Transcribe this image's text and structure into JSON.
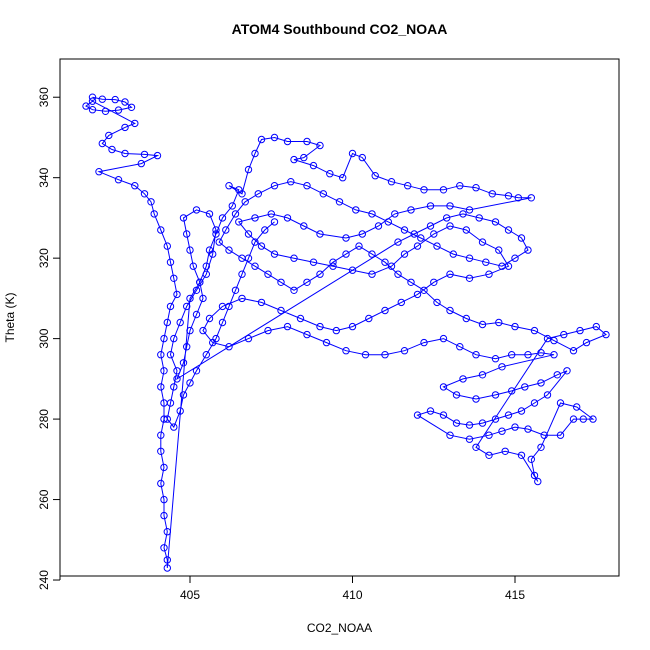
{
  "chart_data": {
    "type": "scatter",
    "title": "ATOM4 Southbound CO2_NOAA",
    "xlabel": "CO2_NOAA",
    "ylabel": "Theta (K)",
    "xlim": [
      401.0,
      418.2
    ],
    "ylim": [
      241.0,
      369.5
    ],
    "x_ticks": [
      405,
      410,
      415
    ],
    "y_ticks": [
      240,
      260,
      280,
      300,
      320,
      340,
      360
    ],
    "marker": "open-circle",
    "color": "#0000ff",
    "connected": true,
    "series": [
      {
        "values": [
          [
            402.0,
            360.0
          ],
          [
            402.3,
            359.5
          ],
          [
            402.7,
            359.4
          ],
          [
            403.0,
            358.8
          ],
          [
            403.2,
            357.5
          ],
          [
            402.8,
            356.8
          ],
          [
            402.4,
            356.5
          ],
          [
            402.0,
            356.9
          ],
          [
            401.8,
            357.8
          ],
          [
            402.0,
            359.0
          ],
          [
            403.3,
            353.5
          ],
          [
            403.0,
            352.5
          ],
          [
            402.5,
            350.5
          ],
          [
            402.3,
            348.5
          ],
          [
            402.6,
            347.0
          ],
          [
            403.0,
            346.0
          ],
          [
            403.6,
            345.8
          ],
          [
            404.0,
            345.5
          ],
          [
            403.5,
            343.5
          ],
          [
            402.2,
            341.5
          ],
          [
            402.8,
            339.5
          ],
          [
            403.3,
            338.0
          ],
          [
            403.6,
            336.0
          ],
          [
            403.8,
            334.0
          ],
          [
            403.9,
            331.0
          ],
          [
            404.1,
            327.0
          ],
          [
            404.3,
            323.0
          ],
          [
            404.4,
            319.0
          ],
          [
            404.5,
            315.0
          ],
          [
            404.6,
            311.0
          ],
          [
            404.4,
            308.0
          ],
          [
            404.3,
            304.0
          ],
          [
            404.2,
            300.0
          ],
          [
            404.1,
            296.0
          ],
          [
            404.2,
            292.0
          ],
          [
            404.1,
            288.0
          ],
          [
            404.2,
            284.0
          ],
          [
            404.2,
            280.0
          ],
          [
            404.1,
            276.0
          ],
          [
            404.1,
            272.0
          ],
          [
            404.2,
            268.0
          ],
          [
            404.1,
            264.0
          ],
          [
            404.2,
            260.0
          ],
          [
            404.2,
            256.0
          ],
          [
            404.3,
            252.0
          ],
          [
            404.2,
            248.0
          ],
          [
            404.3,
            245.0
          ],
          [
            404.3,
            243.0
          ],
          [
            405.0,
            310.0
          ],
          [
            405.3,
            314.0
          ],
          [
            405.5,
            318.0
          ],
          [
            405.6,
            322.0
          ],
          [
            405.8,
            326.0
          ],
          [
            406.0,
            330.0
          ],
          [
            406.3,
            333.0
          ],
          [
            406.5,
            337.0
          ],
          [
            406.2,
            338.0
          ],
          [
            406.6,
            336.0
          ],
          [
            406.8,
            342.0
          ],
          [
            407.0,
            346.0
          ],
          [
            407.2,
            349.5
          ],
          [
            407.6,
            350.0
          ],
          [
            408.0,
            349.0
          ],
          [
            408.6,
            349.0
          ],
          [
            409.0,
            348.0
          ],
          [
            408.5,
            345.0
          ],
          [
            408.2,
            344.5
          ],
          [
            408.8,
            343.0
          ],
          [
            409.3,
            341.0
          ],
          [
            409.7,
            340.0
          ],
          [
            410.0,
            346.0
          ],
          [
            410.3,
            345.0
          ],
          [
            410.7,
            340.5
          ],
          [
            411.2,
            339.0
          ],
          [
            411.7,
            338.0
          ],
          [
            412.2,
            337.0
          ],
          [
            412.8,
            337.0
          ],
          [
            413.3,
            338.0
          ],
          [
            413.8,
            337.5
          ],
          [
            414.3,
            336.0
          ],
          [
            414.8,
            335.5
          ],
          [
            415.1,
            335.0
          ],
          [
            415.5,
            335.0
          ],
          [
            413.6,
            332.0
          ],
          [
            413.0,
            333.0
          ],
          [
            412.4,
            333.0
          ],
          [
            411.8,
            332.0
          ],
          [
            411.3,
            331.0
          ],
          [
            410.8,
            328.0
          ],
          [
            410.3,
            326.0
          ],
          [
            409.8,
            325.0
          ],
          [
            409.0,
            326.0
          ],
          [
            408.5,
            328.0
          ],
          [
            408.0,
            330.0
          ],
          [
            407.5,
            331.0
          ],
          [
            407.0,
            330.0
          ],
          [
            406.5,
            329.0
          ],
          [
            406.8,
            326.0
          ],
          [
            407.2,
            323.0
          ],
          [
            407.6,
            321.0
          ],
          [
            408.2,
            320.0
          ],
          [
            408.8,
            319.0
          ],
          [
            409.4,
            318.0
          ],
          [
            410.0,
            317.0
          ],
          [
            410.6,
            316.0
          ],
          [
            411.2,
            318.0
          ],
          [
            411.6,
            321.0
          ],
          [
            412.0,
            323.0
          ],
          [
            412.5,
            326.0
          ],
          [
            413.0,
            328.0
          ],
          [
            413.5,
            327.0
          ],
          [
            414.0,
            324.0
          ],
          [
            414.5,
            322.0
          ],
          [
            414.8,
            318.0
          ],
          [
            414.2,
            316.0
          ],
          [
            413.6,
            315.0
          ],
          [
            413.0,
            316.0
          ],
          [
            412.5,
            314.0
          ],
          [
            412.0,
            311.0
          ],
          [
            411.5,
            309.0
          ],
          [
            411.0,
            307.0
          ],
          [
            410.5,
            305.0
          ],
          [
            410.0,
            303.0
          ],
          [
            409.5,
            302.0
          ],
          [
            409.0,
            303.0
          ],
          [
            408.4,
            305.0
          ],
          [
            407.8,
            307.0
          ],
          [
            407.2,
            309.0
          ],
          [
            406.6,
            310.0
          ],
          [
            406.0,
            308.0
          ],
          [
            405.6,
            305.0
          ],
          [
            405.4,
            302.0
          ],
          [
            405.7,
            299.0
          ],
          [
            406.2,
            298.0
          ],
          [
            406.8,
            300.0
          ],
          [
            407.4,
            302.0
          ],
          [
            408.0,
            303.0
          ],
          [
            408.6,
            301.0
          ],
          [
            409.2,
            299.0
          ],
          [
            409.8,
            297.0
          ],
          [
            410.4,
            296.0
          ],
          [
            411.0,
            296.0
          ],
          [
            411.6,
            297.0
          ],
          [
            412.2,
            299.0
          ],
          [
            412.8,
            300.0
          ],
          [
            413.3,
            298.0
          ],
          [
            413.8,
            296.0
          ],
          [
            414.4,
            295.0
          ],
          [
            414.9,
            296.0
          ],
          [
            415.4,
            296.0
          ],
          [
            415.8,
            296.5
          ],
          [
            416.2,
            296.0
          ],
          [
            414.6,
            293.0
          ],
          [
            414.0,
            291.0
          ],
          [
            413.4,
            290.0
          ],
          [
            412.8,
            288.0
          ],
          [
            413.2,
            286.0
          ],
          [
            413.8,
            285.0
          ],
          [
            414.4,
            286.0
          ],
          [
            414.9,
            287.0
          ],
          [
            415.3,
            288.0
          ],
          [
            415.8,
            289.0
          ],
          [
            416.3,
            291.0
          ],
          [
            416.6,
            292.0
          ],
          [
            416.0,
            286.0
          ],
          [
            415.6,
            284.0
          ],
          [
            415.2,
            282.0
          ],
          [
            414.8,
            281.0
          ],
          [
            414.4,
            280.0
          ],
          [
            414.0,
            279.0
          ],
          [
            413.6,
            278.5
          ],
          [
            413.2,
            279.0
          ],
          [
            412.8,
            281.0
          ],
          [
            412.4,
            282.0
          ],
          [
            412.0,
            281.0
          ],
          [
            413.0,
            276.0
          ],
          [
            413.6,
            275.0
          ],
          [
            414.2,
            276.0
          ],
          [
            414.6,
            277.0
          ],
          [
            415.0,
            278.0
          ],
          [
            415.4,
            277.5
          ],
          [
            415.9,
            276.0
          ],
          [
            416.4,
            276.0
          ],
          [
            416.8,
            280.0
          ],
          [
            417.1,
            280.0
          ],
          [
            417.4,
            280.0
          ],
          [
            416.9,
            283.0
          ],
          [
            416.4,
            284.0
          ],
          [
            415.8,
            273.0
          ],
          [
            415.5,
            270.0
          ],
          [
            415.6,
            266.0
          ],
          [
            415.7,
            264.5
          ],
          [
            415.2,
            271.0
          ],
          [
            414.7,
            272.0
          ],
          [
            414.2,
            271.0
          ],
          [
            413.8,
            273.0
          ],
          [
            416.0,
            300.0
          ],
          [
            416.5,
            301.0
          ],
          [
            417.0,
            302.0
          ],
          [
            417.5,
            303.0
          ],
          [
            417.8,
            301.0
          ],
          [
            417.2,
            299.0
          ],
          [
            416.8,
            297.0
          ],
          [
            416.2,
            299.5
          ],
          [
            415.6,
            302.0
          ],
          [
            415.0,
            303.0
          ],
          [
            414.5,
            304.0
          ],
          [
            414.0,
            303.5
          ],
          [
            413.5,
            305.0
          ],
          [
            413.0,
            307.0
          ],
          [
            412.6,
            309.0
          ],
          [
            412.2,
            312.0
          ],
          [
            411.8,
            314.0
          ],
          [
            411.4,
            316.0
          ],
          [
            411.0,
            319.0
          ],
          [
            410.6,
            321.0
          ],
          [
            410.2,
            323.0
          ],
          [
            409.8,
            321.0
          ],
          [
            409.4,
            319.0
          ],
          [
            409.0,
            316.0
          ],
          [
            408.6,
            314.0
          ],
          [
            408.2,
            312.0
          ],
          [
            407.8,
            314.0
          ],
          [
            407.4,
            316.0
          ],
          [
            407.0,
            318.0
          ],
          [
            406.6,
            320.0
          ],
          [
            406.2,
            322.0
          ],
          [
            405.9,
            324.0
          ],
          [
            406.1,
            327.0
          ],
          [
            406.4,
            331.0
          ],
          [
            406.7,
            334.0
          ],
          [
            407.1,
            336.0
          ],
          [
            407.6,
            338.0
          ],
          [
            408.1,
            339.0
          ],
          [
            408.6,
            338.0
          ],
          [
            409.1,
            336.0
          ],
          [
            409.6,
            334.0
          ],
          [
            410.1,
            332.0
          ],
          [
            410.6,
            331.0
          ],
          [
            411.1,
            329.0
          ],
          [
            411.6,
            327.0
          ],
          [
            412.1,
            325.0
          ],
          [
            412.6,
            323.0
          ],
          [
            413.1,
            321.0
          ],
          [
            413.6,
            320.0
          ],
          [
            414.1,
            319.0
          ],
          [
            414.6,
            318.0
          ],
          [
            415.0,
            320.0
          ],
          [
            415.4,
            322.0
          ],
          [
            415.2,
            325.0
          ],
          [
            414.8,
            327.0
          ],
          [
            414.4,
            329.0
          ],
          [
            413.9,
            330.0
          ],
          [
            413.4,
            331.0
          ],
          [
            412.9,
            330.0
          ],
          [
            412.4,
            328.0
          ],
          [
            411.9,
            326.0
          ],
          [
            411.4,
            324.0
          ],
          [
            404.6,
            290.0
          ],
          [
            404.8,
            294.0
          ],
          [
            404.9,
            298.0
          ],
          [
            405.0,
            302.0
          ],
          [
            405.2,
            306.0
          ],
          [
            405.4,
            310.0
          ],
          [
            405.3,
            314.0
          ],
          [
            405.1,
            318.0
          ],
          [
            405.0,
            322.0
          ],
          [
            404.9,
            326.0
          ],
          [
            404.8,
            330.0
          ],
          [
            405.2,
            332.0
          ],
          [
            405.6,
            331.0
          ],
          [
            405.8,
            327.0
          ],
          [
            405.7,
            321.0
          ],
          [
            405.5,
            316.0
          ],
          [
            405.2,
            312.0
          ],
          [
            404.9,
            308.0
          ],
          [
            404.7,
            304.0
          ],
          [
            404.5,
            300.0
          ],
          [
            404.4,
            296.0
          ],
          [
            404.6,
            292.0
          ],
          [
            404.5,
            288.0
          ],
          [
            404.4,
            284.0
          ],
          [
            404.3,
            280.0
          ],
          [
            404.5,
            278.0
          ],
          [
            404.7,
            282.0
          ],
          [
            404.8,
            286.0
          ],
          [
            405.0,
            289.0
          ],
          [
            405.2,
            292.0
          ],
          [
            405.5,
            296.0
          ],
          [
            405.8,
            300.0
          ],
          [
            406.0,
            304.0
          ],
          [
            406.2,
            308.0
          ],
          [
            406.4,
            312.0
          ],
          [
            406.6,
            316.0
          ],
          [
            406.8,
            320.0
          ],
          [
            407.0,
            324.0
          ],
          [
            407.3,
            327.0
          ],
          [
            407.6,
            329.0
          ]
        ]
      }
    ]
  }
}
